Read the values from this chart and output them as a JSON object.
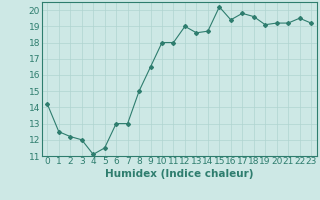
{
  "x": [
    0,
    1,
    2,
    3,
    4,
    5,
    6,
    7,
    8,
    9,
    10,
    11,
    12,
    13,
    14,
    15,
    16,
    17,
    18,
    19,
    20,
    21,
    22,
    23
  ],
  "y": [
    14.2,
    12.5,
    12.2,
    12.0,
    11.1,
    11.5,
    13.0,
    13.0,
    15.0,
    16.5,
    18.0,
    18.0,
    19.0,
    18.6,
    18.7,
    20.2,
    19.4,
    19.8,
    19.6,
    19.1,
    19.2,
    19.2,
    19.5,
    19.2
  ],
  "line_color": "#2e7d6e",
  "marker": "D",
  "marker_size": 2,
  "bg_color": "#cde8e5",
  "grid_color": "#b0d4d0",
  "axis_color": "#2e7d6e",
  "xlabel": "Humidex (Indice chaleur)",
  "xlim": [
    -0.5,
    23.5
  ],
  "ylim": [
    11,
    20.5
  ],
  "yticks": [
    11,
    12,
    13,
    14,
    15,
    16,
    17,
    18,
    19,
    20
  ],
  "xticks": [
    0,
    1,
    2,
    3,
    4,
    5,
    6,
    7,
    8,
    9,
    10,
    11,
    12,
    13,
    14,
    15,
    16,
    17,
    18,
    19,
    20,
    21,
    22,
    23
  ],
  "tick_font_size": 6.5,
  "label_font_size": 7.5
}
